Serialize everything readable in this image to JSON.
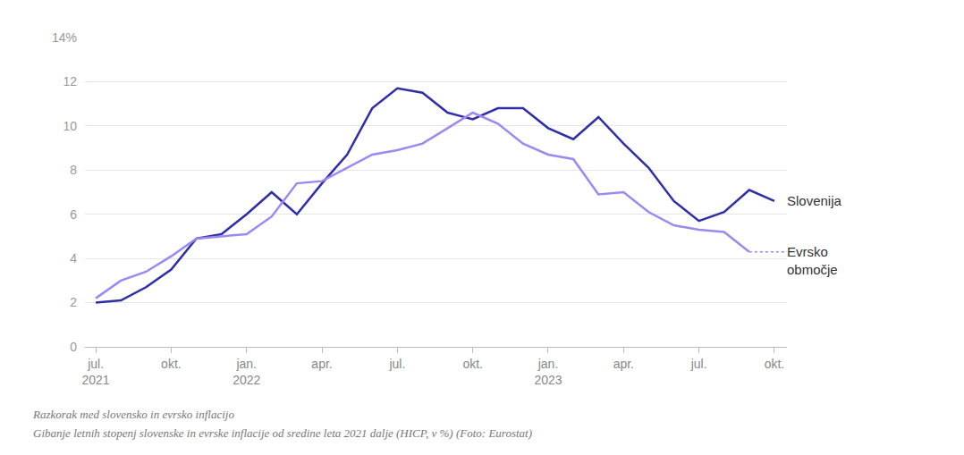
{
  "chart_data": {
    "type": "line",
    "title": "Razkorak med slovensko in evrsko inflacijo",
    "subtitle": "Gibanje letnih stopenj slovenske in evrske inflacije od sredine leta 2021 dalje (HICP, v %) (Foto: Eurostat)",
    "categories": [
      "jul. 2021",
      null,
      null,
      "okt.",
      null,
      null,
      "jan. 2022",
      null,
      null,
      "apr.",
      null,
      null,
      "jul.",
      null,
      null,
      "okt.",
      null,
      null,
      "jan. 2023",
      null,
      null,
      "apr.",
      null,
      null,
      "jul.",
      null,
      null,
      "okt."
    ],
    "series": [
      {
        "name": "Slovenija",
        "color": "#2e2ea8",
        "values": [
          2.0,
          2.1,
          2.7,
          3.5,
          4.9,
          5.1,
          6.0,
          7.0,
          6.0,
          7.4,
          8.7,
          10.8,
          11.7,
          11.5,
          10.6,
          10.3,
          10.8,
          10.8,
          9.9,
          9.4,
          10.4,
          9.2,
          8.1,
          6.6,
          5.7,
          6.1,
          7.1,
          6.6
        ]
      },
      {
        "name": "Evrsko območje",
        "color": "#9d88f2",
        "values": [
          2.2,
          3.0,
          3.4,
          4.1,
          4.9,
          5.0,
          5.1,
          5.9,
          7.4,
          7.5,
          8.1,
          8.7,
          8.9,
          9.2,
          9.9,
          10.6,
          10.1,
          9.2,
          8.7,
          8.5,
          6.9,
          7.0,
          6.1,
          5.5,
          5.3,
          5.2,
          4.3,
          null
        ]
      }
    ],
    "ylim": [
      0,
      14
    ],
    "yticks": [
      0,
      2,
      4,
      6,
      8,
      10,
      12,
      {
        "value": 14,
        "label": "14%"
      }
    ],
    "grid": true,
    "legend": false
  }
}
